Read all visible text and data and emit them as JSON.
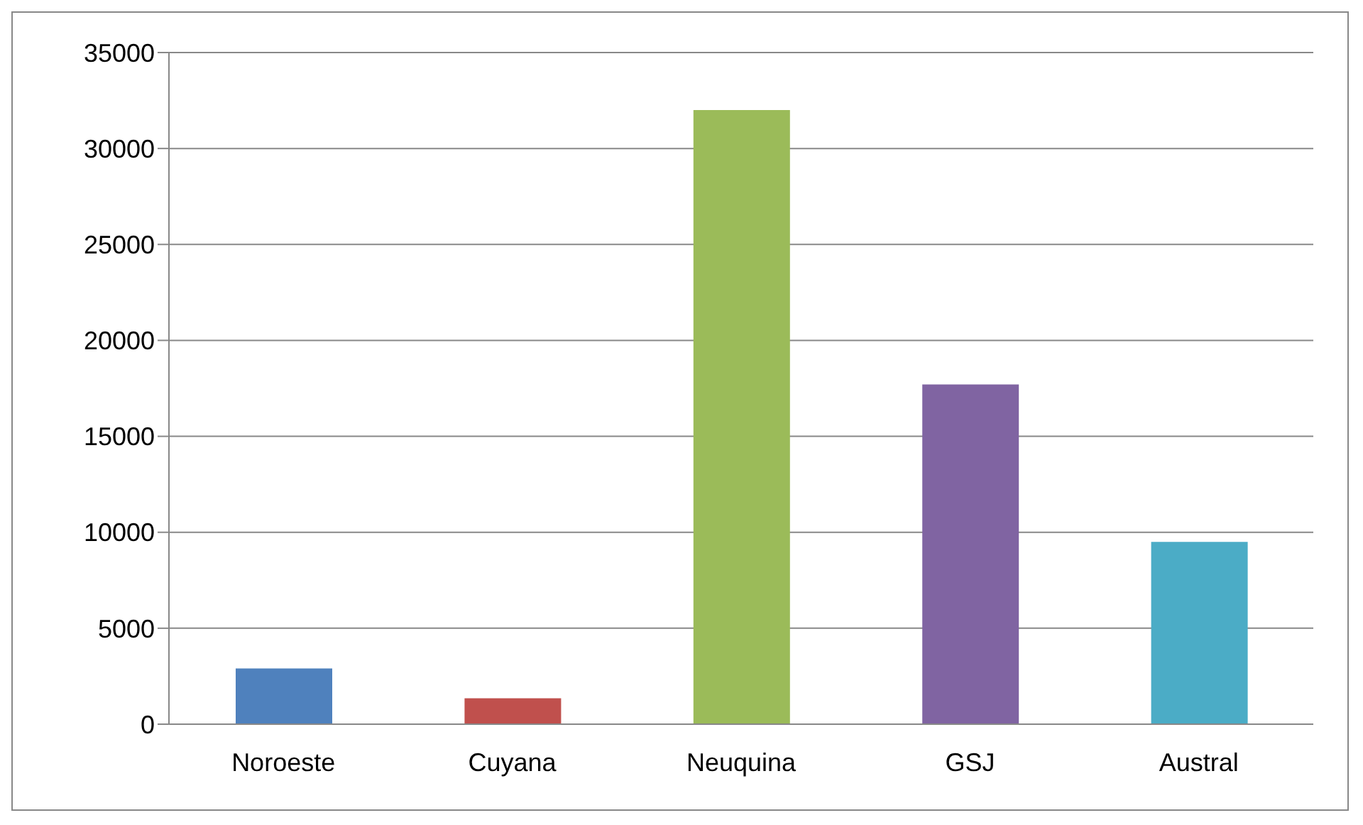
{
  "chart_data": {
    "type": "bar",
    "categories": [
      "Noroeste",
      "Cuyana",
      "Neuquina",
      "GSJ",
      "Austral"
    ],
    "values": [
      2900,
      1350,
      32000,
      17700,
      9500
    ],
    "colors": [
      "#4f81bd",
      "#c0504d",
      "#9bbb59",
      "#8064a2",
      "#4bacc6"
    ],
    "ylim": [
      0,
      35000
    ],
    "yticks": [
      0,
      5000,
      10000,
      15000,
      20000,
      25000,
      30000,
      35000
    ],
    "grid": "y",
    "legend": false
  }
}
